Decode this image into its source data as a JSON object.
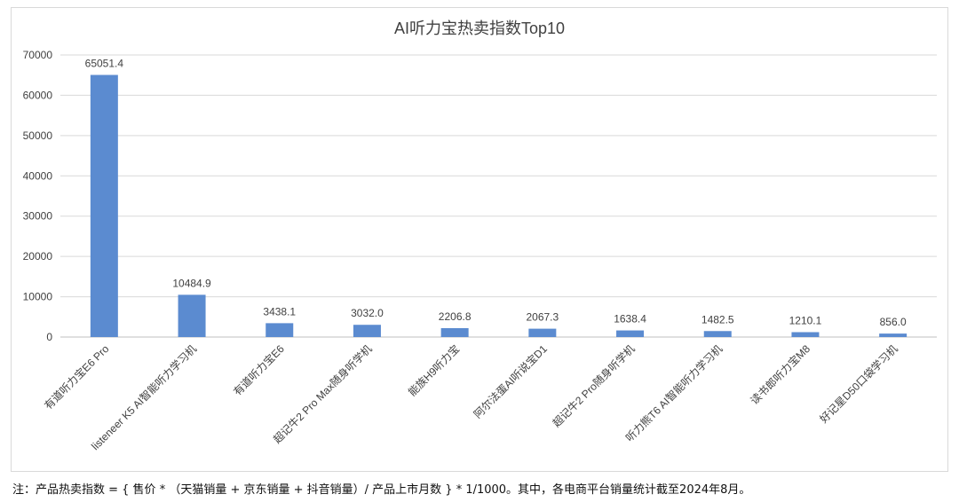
{
  "chart_data": {
    "type": "bar",
    "title": "AI听力宝热卖指数Top10",
    "xlabel": "",
    "ylabel": "",
    "ylim": [
      0,
      70000
    ],
    "yticks": [
      0,
      10000,
      20000,
      30000,
      40000,
      50000,
      60000,
      70000
    ],
    "grid": true,
    "legend": "none",
    "bar_color": "#5b8bd0",
    "categories": [
      "有道听力宝E6 Pro",
      "listeneer K5 AI智能听力学习机",
      "有道听力宝E6",
      "超记牛2 Pro Max随身听学机",
      "能族H9听力宝",
      "阿尔法蛋AI听说宝D1",
      "超记牛2 Pro随身听学机",
      "听力熊T6 AI智能听力学习机",
      "读书郎听力宝M8",
      "好记星D50口袋学习机"
    ],
    "values": [
      65051.4,
      10484.9,
      3438.1,
      3032.0,
      2206.8,
      2067.3,
      1638.4,
      1482.5,
      1210.1,
      856.0
    ],
    "value_labels": [
      "65051.4",
      "10484.9",
      "3438.1",
      "3032.0",
      "2206.8",
      "2067.3",
      "1638.4",
      "1482.5",
      "1210.1",
      "856.0"
    ]
  },
  "footnote": "注：产品热卖指数 = { 售价 * （天猫销量 + 京东销量 + 抖音销量）/ 产品上市月数 } * 1/1000。其中，各电商平台销量统计截至2024年8月。"
}
